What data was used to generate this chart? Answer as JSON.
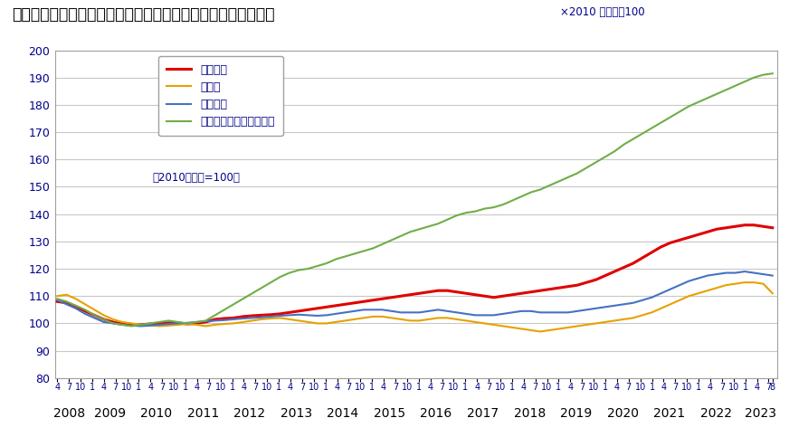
{
  "title": "《不動産価格指数（住宅）（令和５年８月分・季節調整値）》",
  "subtitle": "×2010 年平均＝100",
  "note": "（2010年平均=100）",
  "ylim": [
    80,
    200
  ],
  "yticks": [
    80,
    90,
    100,
    110,
    120,
    130,
    140,
    150,
    160,
    170,
    180,
    190,
    200
  ],
  "series_labels": [
    "住宅総合",
    "住宅地",
    "戸建住宅",
    "マンション（区分所有）"
  ],
  "series_colors": [
    "#e00000",
    "#e8a000",
    "#4472c4",
    "#70ad47"
  ],
  "bg_color": "#ffffff",
  "title_color": "#00008b",
  "axis_color": "#00008b",
  "grid_color": "#c8c8c8",
  "border_color": "#a0a0a0",
  "住宅総合": [
    108.0,
    107.5,
    106.2,
    104.5,
    103.0,
    101.5,
    100.5,
    99.8,
    99.3,
    99.5,
    99.8,
    100.0,
    100.2,
    100.2,
    99.8,
    100.0,
    100.5,
    101.5,
    101.8,
    102.0,
    102.5,
    102.8,
    103.0,
    103.2,
    103.5,
    104.0,
    104.5,
    105.0,
    105.5,
    106.0,
    106.5,
    107.0,
    107.5,
    108.0,
    108.5,
    109.0,
    109.5,
    110.0,
    110.5,
    111.0,
    111.5,
    112.0,
    112.0,
    111.5,
    111.0,
    110.5,
    110.0,
    109.5,
    110.0,
    110.5,
    111.0,
    111.5,
    112.0,
    112.5,
    113.0,
    113.5,
    114.0,
    115.0,
    116.0,
    117.5,
    119.0,
    120.5,
    122.0,
    124.0,
    126.0,
    128.0,
    129.5,
    130.5,
    131.5,
    132.5,
    133.5,
    134.5,
    135.0,
    135.5,
    136.0,
    136.0,
    135.5,
    135.0
  ],
  "住宅地": [
    110.0,
    110.5,
    109.0,
    107.0,
    105.0,
    103.0,
    101.5,
    100.5,
    100.0,
    99.5,
    99.3,
    99.0,
    99.2,
    99.5,
    99.8,
    99.5,
    99.0,
    99.5,
    99.8,
    100.0,
    100.5,
    101.0,
    101.5,
    101.8,
    102.0,
    101.5,
    101.0,
    100.5,
    100.0,
    100.0,
    100.5,
    101.0,
    101.5,
    102.0,
    102.5,
    102.5,
    102.0,
    101.5,
    101.0,
    101.0,
    101.5,
    102.0,
    102.0,
    101.5,
    101.0,
    100.5,
    100.0,
    99.5,
    99.0,
    98.5,
    98.0,
    97.5,
    97.0,
    97.5,
    98.0,
    98.5,
    99.0,
    99.5,
    100.0,
    100.5,
    101.0,
    101.5,
    102.0,
    103.0,
    104.0,
    105.5,
    107.0,
    108.5,
    110.0,
    111.0,
    112.0,
    113.0,
    114.0,
    114.5,
    115.0,
    115.0,
    114.5,
    111.0
  ],
  "戸建住宅": [
    108.5,
    107.0,
    105.5,
    103.5,
    102.0,
    100.5,
    100.0,
    99.5,
    99.2,
    99.0,
    99.2,
    99.5,
    99.8,
    100.0,
    100.2,
    100.5,
    100.8,
    101.0,
    101.2,
    101.5,
    101.8,
    102.0,
    102.2,
    102.5,
    102.8,
    103.0,
    103.2,
    103.0,
    102.8,
    103.0,
    103.5,
    104.0,
    104.5,
    105.0,
    105.0,
    105.0,
    104.5,
    104.0,
    104.0,
    104.0,
    104.5,
    105.0,
    104.5,
    104.0,
    103.5,
    103.0,
    103.0,
    103.0,
    103.5,
    104.0,
    104.5,
    104.5,
    104.0,
    104.0,
    104.0,
    104.0,
    104.5,
    105.0,
    105.5,
    106.0,
    106.5,
    107.0,
    107.5,
    108.5,
    109.5,
    111.0,
    112.5,
    114.0,
    115.5,
    116.5,
    117.5,
    118.0,
    118.5,
    118.5,
    119.0,
    118.5,
    118.0,
    117.5
  ],
  "マンション（区分所有）": [
    109.0,
    108.0,
    106.5,
    105.0,
    103.0,
    101.5,
    100.0,
    99.5,
    99.0,
    99.5,
    100.0,
    100.5,
    101.0,
    100.5,
    100.0,
    100.5,
    101.0,
    103.0,
    105.0,
    107.0,
    109.0,
    111.0,
    113.0,
    115.0,
    117.0,
    118.5,
    119.5,
    120.0,
    121.0,
    122.0,
    123.5,
    124.5,
    125.5,
    126.5,
    127.5,
    129.0,
    130.5,
    132.0,
    133.5,
    134.5,
    135.5,
    136.5,
    138.0,
    139.5,
    140.5,
    141.0,
    142.0,
    142.5,
    143.5,
    145.0,
    146.5,
    148.0,
    149.0,
    150.5,
    152.0,
    153.5,
    155.0,
    157.0,
    159.0,
    161.0,
    163.0,
    165.5,
    167.5,
    169.5,
    171.5,
    173.5,
    175.5,
    177.5,
    179.5,
    181.0,
    182.5,
    184.0,
    185.5,
    187.0,
    188.5,
    190.0,
    191.0,
    191.5
  ]
}
